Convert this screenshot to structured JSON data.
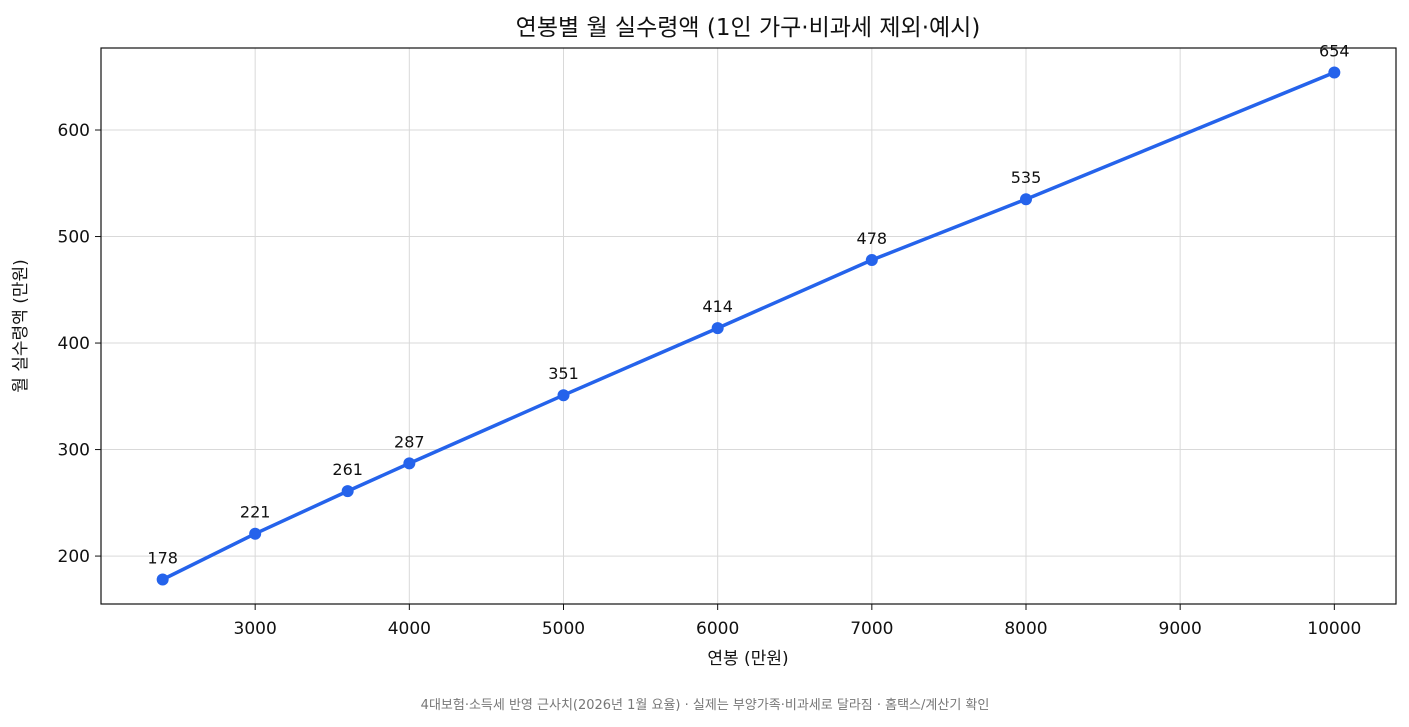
{
  "chart_data": {
    "type": "line",
    "title": "연봉별 월 실수령액 (1인 가구·비과세 제외·예시)",
    "xlabel": "연봉 (만원)",
    "ylabel": "월 실수령액 (만원)",
    "x": [
      2400,
      3000,
      3600,
      4000,
      5000,
      6000,
      7000,
      8000,
      10000
    ],
    "series": [
      {
        "values": [
          178,
          221,
          261,
          287,
          351,
          414,
          478,
          535,
          654
        ],
        "color": "#2563eb"
      }
    ],
    "data_labels": [
      "178",
      "221",
      "261",
      "287",
      "351",
      "414",
      "478",
      "535",
      "654"
    ],
    "xlim": [
      2000,
      10400
    ],
    "ylim": [
      155,
      677
    ],
    "xticks": [
      3000,
      4000,
      5000,
      6000,
      7000,
      8000,
      9000,
      10000
    ],
    "xtick_labels": [
      "3000",
      "4000",
      "5000",
      "6000",
      "7000",
      "8000",
      "9000",
      "10000"
    ],
    "yticks": [
      200,
      300,
      400,
      500,
      600
    ],
    "ytick_labels": [
      "200",
      "300",
      "400",
      "500",
      "600"
    ],
    "grid": true,
    "legend": "none"
  },
  "footnote": "4대보험·소득세 반영 근사치(2026년 1월 요율) · 실제는 부양가족·비과세로 달라짐 · 홈택스/계산기 확인"
}
